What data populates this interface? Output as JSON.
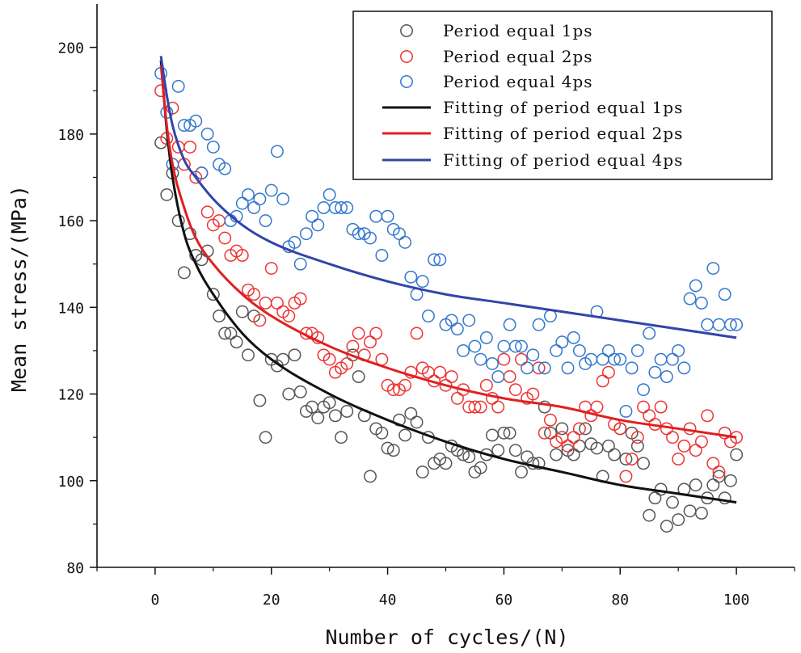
{
  "chart_data": {
    "type": "scatter",
    "xlabel": "Number of cycles/(N)",
    "ylabel": "Mean stress/(MPa)",
    "xlim": [
      -10,
      110
    ],
    "ylim": [
      80,
      210
    ],
    "xticks": [
      0,
      20,
      40,
      60,
      80,
      100
    ],
    "yticks": [
      80,
      100,
      120,
      140,
      160,
      180,
      200
    ],
    "xtick_labels": [
      "0",
      "20",
      "40",
      "60",
      "80",
      "100"
    ],
    "ytick_labels": [
      "80",
      "100",
      "120",
      "140",
      "160",
      "180",
      "200"
    ],
    "grid": false,
    "legend_position": "top-right",
    "series": [
      {
        "name": "Period equal 1ps",
        "kind": "scatter",
        "color": "#555555",
        "x": [
          1,
          2,
          3,
          4,
          5,
          6,
          7,
          8,
          9,
          10,
          11,
          12,
          13,
          14,
          15,
          16,
          17,
          18,
          19,
          20,
          21,
          22,
          23,
          24,
          25,
          26,
          27,
          28,
          29,
          30,
          31,
          32,
          33,
          34,
          35,
          36,
          37,
          38,
          39,
          40,
          41,
          42,
          43,
          44,
          45,
          46,
          47,
          48,
          49,
          50,
          51,
          52,
          53,
          54,
          55,
          56,
          57,
          58,
          59,
          60,
          61,
          62,
          63,
          64,
          65,
          66,
          67,
          68,
          69,
          70,
          71,
          72,
          73,
          74,
          75,
          76,
          77,
          78,
          79,
          80,
          81,
          82,
          83,
          84,
          85,
          86,
          87,
          88,
          89,
          90,
          91,
          92,
          93,
          94,
          95,
          96,
          97,
          98,
          99,
          100
        ],
        "y": [
          178,
          166,
          171,
          160,
          148,
          157,
          152,
          151,
          153,
          143,
          138,
          134,
          134,
          132,
          139,
          129,
          138,
          118.5,
          110,
          128,
          126.5,
          128,
          120,
          129,
          120.5,
          116,
          117,
          114.5,
          117,
          118,
          115,
          110,
          116,
          129,
          124,
          115,
          101,
          112,
          111,
          107.5,
          107,
          114,
          110.5,
          115.5,
          113.5,
          102,
          110,
          104,
          105,
          104,
          108,
          107,
          106,
          105.5,
          102,
          103,
          106,
          110.5,
          107,
          111,
          111,
          107,
          102,
          105.5,
          104,
          104,
          117,
          111,
          106,
          112,
          107,
          106,
          108,
          112,
          108.5,
          107.5,
          101,
          108,
          106,
          112,
          105,
          111,
          108,
          104,
          92,
          96,
          98,
          89.5,
          95,
          91,
          98,
          93,
          99,
          92.5,
          96,
          99,
          101,
          96,
          100,
          106
        ]
      },
      {
        "name": "Period equal 2ps",
        "kind": "scatter",
        "color": "#ee3333",
        "x": [
          1,
          2,
          3,
          4,
          5,
          6,
          7,
          8,
          9,
          10,
          11,
          12,
          13,
          14,
          15,
          16,
          17,
          18,
          19,
          20,
          21,
          22,
          23,
          24,
          25,
          26,
          27,
          28,
          29,
          30,
          31,
          32,
          33,
          34,
          35,
          36,
          37,
          38,
          39,
          40,
          41,
          42,
          43,
          44,
          45,
          46,
          47,
          48,
          49,
          50,
          51,
          52,
          53,
          54,
          55,
          56,
          57,
          58,
          59,
          60,
          61,
          62,
          63,
          64,
          65,
          66,
          67,
          68,
          69,
          70,
          71,
          72,
          73,
          74,
          75,
          76,
          77,
          78,
          79,
          80,
          81,
          82,
          83,
          84,
          85,
          86,
          87,
          88,
          89,
          90,
          91,
          92,
          93,
          94,
          95,
          96,
          97,
          98,
          99,
          100
        ],
        "y": [
          190,
          179,
          186,
          177,
          173,
          177,
          170,
          171,
          162,
          159,
          160,
          156,
          152,
          153,
          152,
          144,
          143,
          137,
          141,
          149,
          141,
          139,
          138,
          141,
          142,
          134,
          134,
          133,
          129,
          128,
          125,
          126,
          127,
          131,
          134,
          129,
          132,
          134,
          128,
          122,
          121,
          121,
          122,
          125,
          134,
          126,
          125,
          123,
          125,
          122,
          124,
          119,
          121,
          117,
          117,
          117,
          122,
          119,
          117,
          128,
          124,
          121,
          128,
          119,
          120,
          126,
          111,
          114,
          109,
          110,
          108,
          110,
          112,
          117,
          115,
          117,
          123,
          125,
          113,
          112,
          101,
          105,
          110,
          117,
          115,
          113,
          117,
          112,
          110,
          105,
          108,
          112,
          107,
          109,
          115,
          104,
          102,
          111,
          109,
          110
        ]
      },
      {
        "name": "Period equal 4ps",
        "kind": "scatter",
        "color": "#3377cc",
        "x": [
          1,
          2,
          3,
          4,
          5,
          6,
          7,
          8,
          9,
          10,
          11,
          12,
          13,
          14,
          15,
          16,
          17,
          18,
          19,
          20,
          21,
          22,
          23,
          24,
          25,
          26,
          27,
          28,
          29,
          30,
          31,
          32,
          33,
          34,
          35,
          36,
          37,
          38,
          39,
          40,
          41,
          42,
          43,
          44,
          45,
          46,
          47,
          48,
          49,
          50,
          51,
          52,
          53,
          54,
          55,
          56,
          57,
          58,
          59,
          60,
          61,
          62,
          63,
          64,
          65,
          66,
          67,
          68,
          69,
          70,
          71,
          72,
          73,
          74,
          75,
          76,
          77,
          78,
          79,
          80,
          81,
          82,
          83,
          84,
          85,
          86,
          87,
          88,
          89,
          90,
          91,
          92,
          93,
          94,
          95,
          96,
          97,
          98,
          99,
          100
        ],
        "y": [
          194,
          185,
          173,
          191,
          182,
          182,
          183,
          171,
          180,
          177,
          173,
          172,
          160,
          161,
          164,
          166,
          163,
          165,
          160,
          167,
          176,
          165,
          154,
          155,
          150,
          157,
          161,
          159,
          163,
          166,
          163,
          163,
          163,
          158,
          157,
          157,
          156,
          161,
          152,
          161,
          158,
          157,
          155,
          147,
          143,
          146,
          138,
          151,
          151,
          136,
          137,
          135,
          130,
          137,
          131,
          128,
          133,
          127,
          124,
          131,
          136,
          131,
          131,
          126,
          129,
          136,
          126,
          138,
          130,
          132,
          126,
          133,
          130,
          127,
          128,
          139,
          128,
          130,
          128,
          128,
          116,
          126,
          130,
          121,
          134,
          125,
          128,
          124,
          128,
          130,
          126,
          142,
          145,
          141,
          136,
          149,
          136,
          143,
          136,
          136
        ]
      },
      {
        "name": "Fitting of period equal 1ps",
        "kind": "fit",
        "color": "#111111",
        "x": [
          1,
          2,
          3,
          5,
          7,
          10,
          15,
          20,
          30,
          40,
          50,
          60,
          70,
          80,
          90,
          100
        ],
        "y": [
          197,
          181,
          170,
          157,
          150,
          143,
          134,
          128,
          120,
          114,
          109,
          105,
          102,
          99,
          97,
          95
        ]
      },
      {
        "name": "Fitting of period equal 2ps",
        "kind": "fit",
        "color": "#e02020",
        "x": [
          1,
          2,
          3,
          5,
          7,
          10,
          15,
          20,
          30,
          40,
          50,
          60,
          70,
          80,
          90,
          100
        ],
        "y": [
          196,
          182,
          173,
          163,
          156,
          150,
          143,
          138,
          131,
          126,
          122,
          119,
          117,
          114,
          112,
          110
        ]
      },
      {
        "name": "Fitting of period equal 4ps",
        "kind": "fit",
        "color": "#3344aa",
        "x": [
          1,
          2,
          3,
          5,
          7,
          10,
          15,
          20,
          30,
          40,
          50,
          60,
          70,
          80,
          90,
          100
        ],
        "y": [
          198,
          189,
          182,
          174,
          170,
          165,
          159,
          155,
          150,
          146,
          143,
          141,
          139,
          137,
          135,
          133
        ]
      }
    ]
  }
}
